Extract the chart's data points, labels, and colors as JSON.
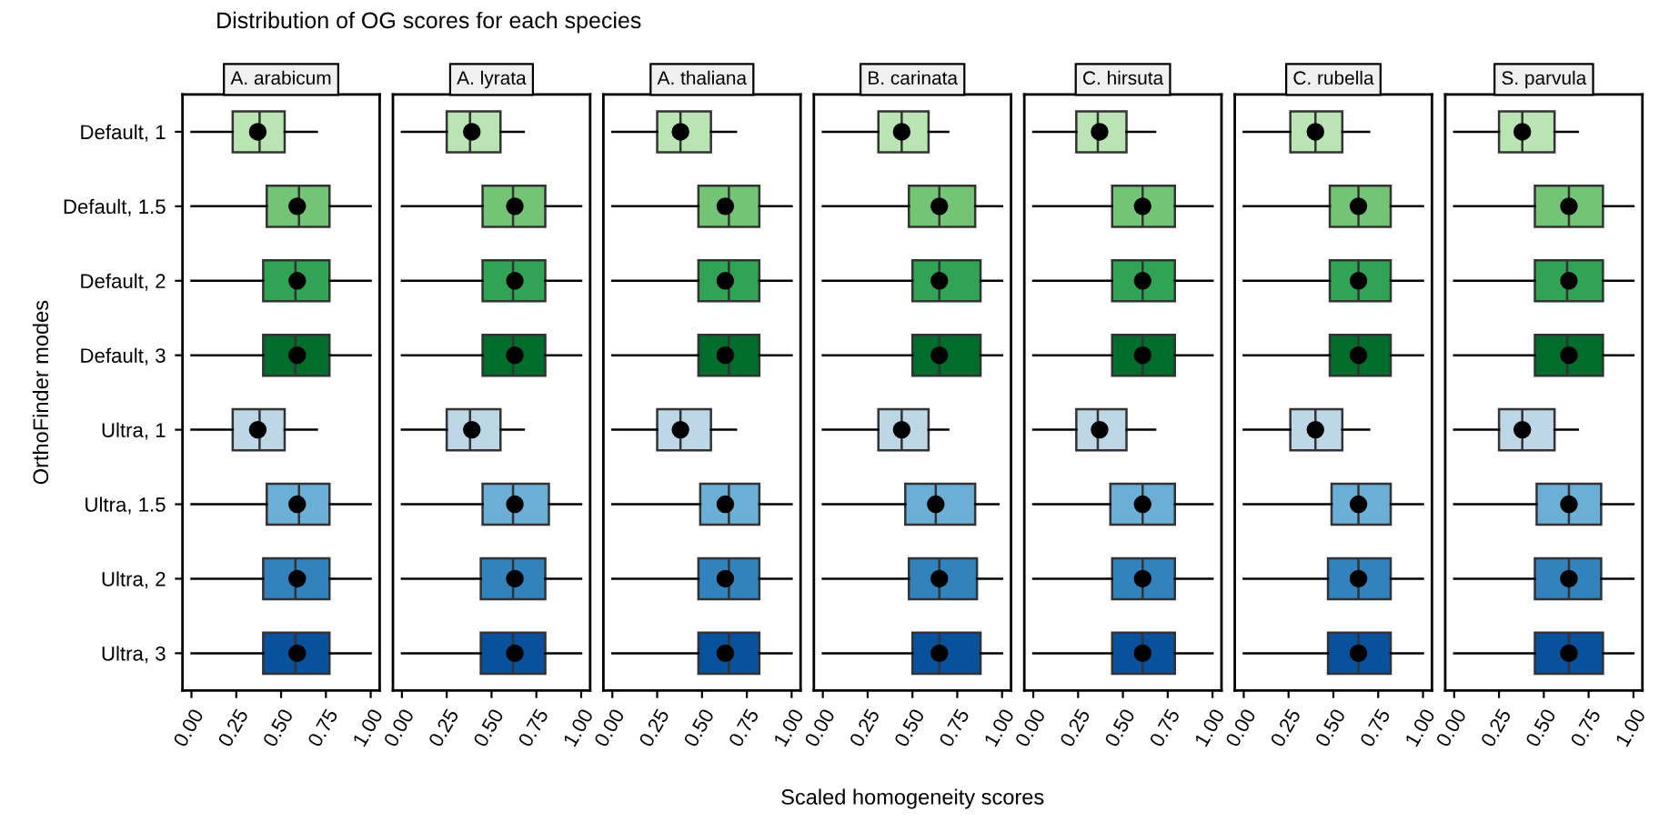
{
  "chart_data": [
    {
      "type": "box",
      "orientation": "horizontal",
      "title": "A. arabicum",
      "ylabel": "OrthoFinder modes",
      "annotations": [
        "Distribution of OG scores for each species"
      ],
      "categories": [
        "Default, 1",
        "Default, 1.5",
        "Default, 2",
        "Default, 3",
        "Ultra, 1",
        "Ultra, 1.5",
        "Ultra, 2",
        "Ultra, 3"
      ],
      "colors": [
        "#bae4b3",
        "#74c476",
        "#31a354",
        "#006d2c",
        "#bdd7e7",
        "#6baed6",
        "#3182bd",
        "#08519c"
      ],
      "xlim": [
        -0.05,
        1.05
      ],
      "xticks": [
        {
          "value": 0,
          "label": "0.00"
        },
        {
          "value": 0.25,
          "label": "0.25"
        },
        {
          "value": 0.5,
          "label": "0.50"
        },
        {
          "value": 0.75,
          "label": "0.75"
        },
        {
          "value": 1,
          "label": "1.00"
        }
      ],
      "boxes": [
        {
          "low": 0,
          "q1": 0.23,
          "median": 0.38,
          "q3": 0.52,
          "high": 0.7,
          "mean": 0.37
        },
        {
          "low": 0,
          "q1": 0.42,
          "median": 0.6,
          "q3": 0.77,
          "high": 1,
          "mean": 0.59
        },
        {
          "low": 0,
          "q1": 0.4,
          "median": 0.58,
          "q3": 0.77,
          "high": 1,
          "mean": 0.59
        },
        {
          "low": 0,
          "q1": 0.4,
          "median": 0.58,
          "q3": 0.77,
          "high": 1,
          "mean": 0.59
        },
        {
          "low": 0,
          "q1": 0.23,
          "median": 0.38,
          "q3": 0.52,
          "high": 0.7,
          "mean": 0.37
        },
        {
          "low": 0,
          "q1": 0.42,
          "median": 0.6,
          "q3": 0.77,
          "high": 1,
          "mean": 0.59
        },
        {
          "low": 0,
          "q1": 0.4,
          "median": 0.58,
          "q3": 0.77,
          "high": 1,
          "mean": 0.59
        },
        {
          "low": 0,
          "q1": 0.4,
          "median": 0.58,
          "q3": 0.77,
          "high": 1,
          "mean": 0.59
        }
      ]
    },
    {
      "type": "box",
      "orientation": "horizontal",
      "title": "A. lyrata",
      "tick_labels": "x",
      "colors": [
        "#bae4b3",
        "#74c476",
        "#31a354",
        "#006d2c",
        "#bdd7e7",
        "#6baed6",
        "#3182bd",
        "#08519c"
      ],
      "xlim": [
        -0.05,
        1.05
      ],
      "xticks": [
        {
          "value": 0,
          "label": "0.00"
        },
        {
          "value": 0.25,
          "label": "0.25"
        },
        {
          "value": 0.5,
          "label": "0.50"
        },
        {
          "value": 0.75,
          "label": "0.75"
        },
        {
          "value": 1,
          "label": "1.00"
        }
      ],
      "boxes": [
        {
          "low": 0,
          "q1": 0.25,
          "median": 0.38,
          "q3": 0.55,
          "high": 0.68,
          "mean": 0.39
        },
        {
          "low": 0,
          "q1": 0.45,
          "median": 0.62,
          "q3": 0.8,
          "high": 1,
          "mean": 0.63
        },
        {
          "low": 0,
          "q1": 0.45,
          "median": 0.62,
          "q3": 0.8,
          "high": 1,
          "mean": 0.63
        },
        {
          "low": 0,
          "q1": 0.45,
          "median": 0.62,
          "q3": 0.8,
          "high": 1,
          "mean": 0.63
        },
        {
          "low": 0,
          "q1": 0.25,
          "median": 0.38,
          "q3": 0.55,
          "high": 0.68,
          "mean": 0.39
        },
        {
          "low": 0,
          "q1": 0.45,
          "median": 0.62,
          "q3": 0.82,
          "high": 1,
          "mean": 0.63
        },
        {
          "low": 0,
          "q1": 0.44,
          "median": 0.62,
          "q3": 0.8,
          "high": 1,
          "mean": 0.63
        },
        {
          "low": 0,
          "q1": 0.44,
          "median": 0.62,
          "q3": 0.8,
          "high": 1,
          "mean": 0.63
        }
      ]
    },
    {
      "type": "box",
      "orientation": "horizontal",
      "title": "A. thaliana",
      "tick_labels": "x",
      "colors": [
        "#bae4b3",
        "#74c476",
        "#31a354",
        "#006d2c",
        "#bdd7e7",
        "#6baed6",
        "#3182bd",
        "#08519c"
      ],
      "xlim": [
        -0.05,
        1.05
      ],
      "xticks": [
        {
          "value": 0,
          "label": "0.00"
        },
        {
          "value": 0.25,
          "label": "0.25"
        },
        {
          "value": 0.5,
          "label": "0.50"
        },
        {
          "value": 0.75,
          "label": "0.75"
        },
        {
          "value": 1,
          "label": "1.00"
        }
      ],
      "boxes": [
        {
          "low": 0,
          "q1": 0.25,
          "median": 0.38,
          "q3": 0.55,
          "high": 0.69,
          "mean": 0.38
        },
        {
          "low": 0,
          "q1": 0.48,
          "median": 0.65,
          "q3": 0.82,
          "high": 1,
          "mean": 0.63
        },
        {
          "low": 0,
          "q1": 0.48,
          "median": 0.65,
          "q3": 0.82,
          "high": 1,
          "mean": 0.63
        },
        {
          "low": 0,
          "q1": 0.48,
          "median": 0.65,
          "q3": 0.82,
          "high": 1,
          "mean": 0.63
        },
        {
          "low": 0,
          "q1": 0.25,
          "median": 0.38,
          "q3": 0.55,
          "high": 0.69,
          "mean": 0.38
        },
        {
          "low": 0,
          "q1": 0.49,
          "median": 0.65,
          "q3": 0.82,
          "high": 1,
          "mean": 0.63
        },
        {
          "low": 0,
          "q1": 0.48,
          "median": 0.65,
          "q3": 0.82,
          "high": 1,
          "mean": 0.63
        },
        {
          "low": 0,
          "q1": 0.48,
          "median": 0.65,
          "q3": 0.82,
          "high": 1,
          "mean": 0.63
        }
      ]
    },
    {
      "type": "box",
      "orientation": "horizontal",
      "title": "B. carinata",
      "xlabel": "Scaled homogeneity scores",
      "tick_labels": "x",
      "colors": [
        "#bae4b3",
        "#74c476",
        "#31a354",
        "#006d2c",
        "#bdd7e7",
        "#6baed6",
        "#3182bd",
        "#08519c"
      ],
      "xlim": [
        -0.05,
        1.05
      ],
      "xticks": [
        {
          "value": 0,
          "label": "0.00"
        },
        {
          "value": 0.25,
          "label": "0.25"
        },
        {
          "value": 0.5,
          "label": "0.50"
        },
        {
          "value": 0.75,
          "label": "0.75"
        },
        {
          "value": 1,
          "label": "1.00"
        }
      ],
      "boxes": [
        {
          "low": 0,
          "q1": 0.31,
          "median": 0.44,
          "q3": 0.59,
          "high": 0.7,
          "mean": 0.44
        },
        {
          "low": 0,
          "q1": 0.48,
          "median": 0.65,
          "q3": 0.85,
          "high": 1,
          "mean": 0.65
        },
        {
          "low": 0,
          "q1": 0.5,
          "median": 0.65,
          "q3": 0.88,
          "high": 1,
          "mean": 0.65
        },
        {
          "low": 0,
          "q1": 0.5,
          "median": 0.65,
          "q3": 0.88,
          "high": 1,
          "mean": 0.65
        },
        {
          "low": 0,
          "q1": 0.31,
          "median": 0.44,
          "q3": 0.59,
          "high": 0.7,
          "mean": 0.44
        },
        {
          "low": 0,
          "q1": 0.46,
          "median": 0.63,
          "q3": 0.85,
          "high": 0.98,
          "mean": 0.63
        },
        {
          "low": 0,
          "q1": 0.48,
          "median": 0.65,
          "q3": 0.86,
          "high": 1,
          "mean": 0.65
        },
        {
          "low": 0,
          "q1": 0.5,
          "median": 0.65,
          "q3": 0.88,
          "high": 1,
          "mean": 0.65
        }
      ]
    },
    {
      "type": "box",
      "orientation": "horizontal",
      "title": "C. hirsuta",
      "tick_labels": "x",
      "colors": [
        "#bae4b3",
        "#74c476",
        "#31a354",
        "#006d2c",
        "#bdd7e7",
        "#6baed6",
        "#3182bd",
        "#08519c"
      ],
      "xlim": [
        -0.05,
        1.05
      ],
      "xticks": [
        {
          "value": 0,
          "label": "0.00"
        },
        {
          "value": 0.25,
          "label": "0.25"
        },
        {
          "value": 0.5,
          "label": "0.50"
        },
        {
          "value": 0.75,
          "label": "0.75"
        },
        {
          "value": 1,
          "label": "1.00"
        }
      ],
      "boxes": [
        {
          "low": 0,
          "q1": 0.24,
          "median": 0.36,
          "q3": 0.52,
          "high": 0.68,
          "mean": 0.37
        },
        {
          "low": 0,
          "q1": 0.44,
          "median": 0.61,
          "q3": 0.79,
          "high": 1,
          "mean": 0.61
        },
        {
          "low": 0,
          "q1": 0.44,
          "median": 0.61,
          "q3": 0.79,
          "high": 1,
          "mean": 0.61
        },
        {
          "low": 0,
          "q1": 0.44,
          "median": 0.61,
          "q3": 0.79,
          "high": 1,
          "mean": 0.61
        },
        {
          "low": 0,
          "q1": 0.24,
          "median": 0.36,
          "q3": 0.52,
          "high": 0.68,
          "mean": 0.37
        },
        {
          "low": 0,
          "q1": 0.43,
          "median": 0.61,
          "q3": 0.79,
          "high": 1,
          "mean": 0.61
        },
        {
          "low": 0,
          "q1": 0.44,
          "median": 0.61,
          "q3": 0.79,
          "high": 1,
          "mean": 0.61
        },
        {
          "low": 0,
          "q1": 0.44,
          "median": 0.61,
          "q3": 0.79,
          "high": 1,
          "mean": 0.61
        }
      ]
    },
    {
      "type": "box",
      "orientation": "horizontal",
      "title": "C. rubella",
      "tick_labels": "x",
      "colors": [
        "#bae4b3",
        "#74c476",
        "#31a354",
        "#006d2c",
        "#bdd7e7",
        "#6baed6",
        "#3182bd",
        "#08519c"
      ],
      "xlim": [
        -0.05,
        1.05
      ],
      "xticks": [
        {
          "value": 0,
          "label": "0.00"
        },
        {
          "value": 0.25,
          "label": "0.25"
        },
        {
          "value": 0.5,
          "label": "0.50"
        },
        {
          "value": 0.75,
          "label": "0.75"
        },
        {
          "value": 1,
          "label": "1.00"
        }
      ],
      "boxes": [
        {
          "low": 0,
          "q1": 0.26,
          "median": 0.4,
          "q3": 0.55,
          "high": 0.7,
          "mean": 0.4
        },
        {
          "low": 0,
          "q1": 0.48,
          "median": 0.64,
          "q3": 0.82,
          "high": 1,
          "mean": 0.64
        },
        {
          "low": 0,
          "q1": 0.48,
          "median": 0.64,
          "q3": 0.82,
          "high": 1,
          "mean": 0.64
        },
        {
          "low": 0,
          "q1": 0.48,
          "median": 0.64,
          "q3": 0.82,
          "high": 1,
          "mean": 0.64
        },
        {
          "low": 0,
          "q1": 0.26,
          "median": 0.4,
          "q3": 0.55,
          "high": 0.7,
          "mean": 0.4
        },
        {
          "low": 0,
          "q1": 0.49,
          "median": 0.64,
          "q3": 0.82,
          "high": 1,
          "mean": 0.64
        },
        {
          "low": 0,
          "q1": 0.47,
          "median": 0.64,
          "q3": 0.82,
          "high": 1,
          "mean": 0.64
        },
        {
          "low": 0,
          "q1": 0.47,
          "median": 0.64,
          "q3": 0.82,
          "high": 1,
          "mean": 0.64
        }
      ]
    },
    {
      "type": "box",
      "orientation": "horizontal",
      "title": "S. parvula",
      "tick_labels": "x",
      "colors": [
        "#bae4b3",
        "#74c476",
        "#31a354",
        "#006d2c",
        "#bdd7e7",
        "#6baed6",
        "#3182bd",
        "#08519c"
      ],
      "xlim": [
        -0.05,
        1.05
      ],
      "xticks": [
        {
          "value": 0,
          "label": "0.00"
        },
        {
          "value": 0.25,
          "label": "0.25"
        },
        {
          "value": 0.5,
          "label": "0.50"
        },
        {
          "value": 0.75,
          "label": "0.75"
        },
        {
          "value": 1,
          "label": "1.00"
        }
      ],
      "boxes": [
        {
          "low": 0,
          "q1": 0.25,
          "median": 0.38,
          "q3": 0.56,
          "high": 0.69,
          "mean": 0.38
        },
        {
          "low": 0,
          "q1": 0.45,
          "median": 0.64,
          "q3": 0.83,
          "high": 1,
          "mean": 0.64
        },
        {
          "low": 0,
          "q1": 0.45,
          "median": 0.63,
          "q3": 0.83,
          "high": 1,
          "mean": 0.64
        },
        {
          "low": 0,
          "q1": 0.45,
          "median": 0.63,
          "q3": 0.83,
          "high": 1,
          "mean": 0.64
        },
        {
          "low": 0,
          "q1": 0.25,
          "median": 0.38,
          "q3": 0.56,
          "high": 0.69,
          "mean": 0.38
        },
        {
          "low": 0,
          "q1": 0.46,
          "median": 0.64,
          "q3": 0.82,
          "high": 1,
          "mean": 0.64
        },
        {
          "low": 0,
          "q1": 0.45,
          "median": 0.64,
          "q3": 0.82,
          "high": 1,
          "mean": 0.64
        },
        {
          "low": 0,
          "q1": 0.45,
          "median": 0.64,
          "q3": 0.83,
          "high": 1,
          "mean": 0.64
        }
      ]
    }
  ]
}
